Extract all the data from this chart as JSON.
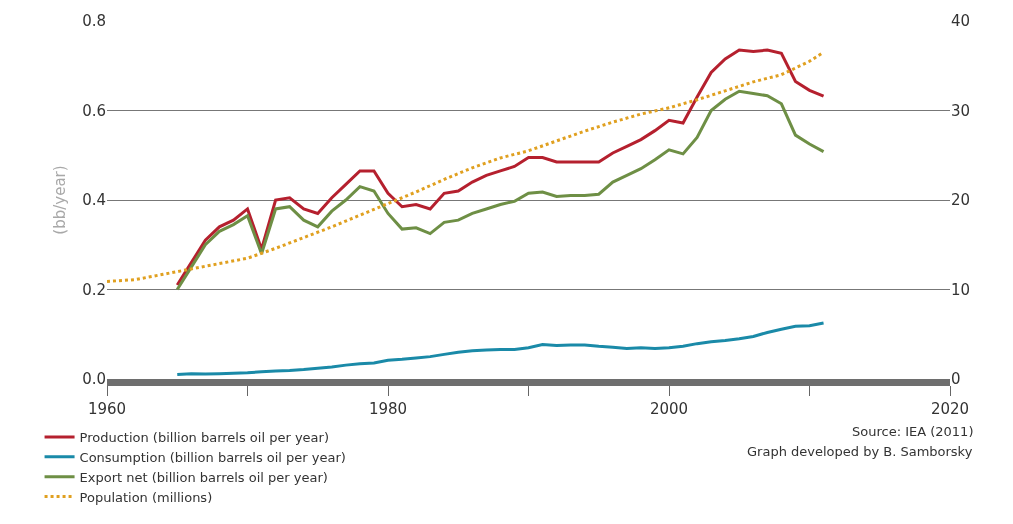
{
  "chart_data": {
    "type": "line",
    "ylabel": "(bb/year)",
    "x": [
      1965,
      1966,
      1967,
      1968,
      1969,
      1970,
      1971,
      1972,
      1973,
      1974,
      1975,
      1976,
      1977,
      1978,
      1979,
      1980,
      1981,
      1982,
      1983,
      1984,
      1985,
      1986,
      1987,
      1988,
      1989,
      1990,
      1991,
      1992,
      1993,
      1994,
      1995,
      1996,
      1997,
      1998,
      1999,
      2000,
      2001,
      2002,
      2003,
      2004,
      2005,
      2006,
      2007,
      2008,
      2009,
      2010,
      2011
    ],
    "series": [
      {
        "name": "Production (billion barrels oil per year)",
        "color": "#b5202e",
        "values": [
          0.21,
          0.26,
          0.31,
          0.34,
          0.355,
          0.38,
          0.29,
          0.4,
          0.405,
          0.38,
          0.37,
          0.405,
          0.435,
          0.465,
          0.465,
          0.415,
          0.385,
          0.39,
          0.38,
          0.415,
          0.42,
          0.44,
          0.455,
          0.465,
          0.475,
          0.495,
          0.495,
          0.485,
          0.485,
          0.485,
          0.485,
          0.505,
          0.52,
          0.535,
          0.555,
          0.578,
          0.572,
          0.63,
          0.685,
          0.715,
          0.735,
          0.732,
          0.735,
          0.728,
          0.665,
          0.645,
          0.632
        ]
      },
      {
        "name": "Consumption (billion barrels oil per year)",
        "color": "#1a8aa8",
        "values": [
          0.01,
          0.012,
          0.011,
          0.012,
          0.013,
          0.014,
          0.016,
          0.018,
          0.019,
          0.021,
          0.024,
          0.027,
          0.031,
          0.034,
          0.036,
          0.042,
          0.044,
          0.047,
          0.05,
          0.055,
          0.06,
          0.063,
          0.065,
          0.066,
          0.066,
          0.07,
          0.077,
          0.075,
          0.076,
          0.076,
          0.073,
          0.071,
          0.068,
          0.07,
          0.068,
          0.07,
          0.073,
          0.079,
          0.083,
          0.086,
          0.09,
          0.095,
          0.104,
          0.111,
          0.118,
          0.119,
          0.125
        ]
      },
      {
        "name": "Export net (billion barrels oil per year)",
        "color": "#6e8f45",
        "values": [
          0.2,
          0.25,
          0.3,
          0.33,
          0.345,
          0.365,
          0.28,
          0.38,
          0.385,
          0.355,
          0.34,
          0.375,
          0.4,
          0.43,
          0.42,
          0.37,
          0.335,
          0.338,
          0.325,
          0.35,
          0.355,
          0.37,
          0.38,
          0.39,
          0.397,
          0.415,
          0.418,
          0.408,
          0.41,
          0.41,
          0.413,
          0.44,
          0.455,
          0.47,
          0.49,
          0.512,
          0.503,
          0.54,
          0.6,
          0.625,
          0.643,
          0.638,
          0.633,
          0.615,
          0.545,
          0.525,
          0.508
        ]
      },
      {
        "name": "Population (millions)",
        "color": "#e0a020",
        "axis": "y2",
        "line_style": "dotted",
        "x": [
          1960,
          1962,
          1964,
          1966,
          1968,
          1970,
          1972,
          1974,
          1976,
          1978,
          1980,
          1982,
          1984,
          1986,
          1988,
          1990,
          1992,
          1994,
          1996,
          1998,
          2000,
          2002,
          2004,
          2006,
          2008,
          2010,
          2011
        ],
        "values": [
          10.9,
          11.1,
          11.7,
          12.3,
          12.9,
          13.5,
          14.6,
          15.8,
          17.0,
          18.3,
          19.6,
          20.9,
          22.3,
          23.6,
          24.7,
          25.5,
          26.6,
          27.7,
          28.7,
          29.6,
          30.3,
          31.2,
          32.2,
          33.2,
          34.0,
          35.5,
          36.5
        ]
      }
    ],
    "xlim": [
      1960,
      2020
    ],
    "xticks": [
      1960,
      {
        "value": 1970,
        "label": null
      },
      1980,
      {
        "value": 1990,
        "label": null
      },
      2000,
      {
        "value": 2010,
        "label": null
      },
      2020
    ],
    "ylim": [
      0,
      0.8
    ],
    "yticks": [
      {
        "value": 0,
        "label": "0.0"
      },
      0.2,
      0.4,
      0.6,
      0.8
    ],
    "y2lim": [
      0,
      40
    ],
    "y2ticks": [
      0,
      10,
      20,
      30,
      40
    ],
    "grid": "y",
    "legend": "bottom left",
    "annotations": [
      "Source: IEA (2011)",
      "Graph developed by B. Samborsky"
    ]
  }
}
